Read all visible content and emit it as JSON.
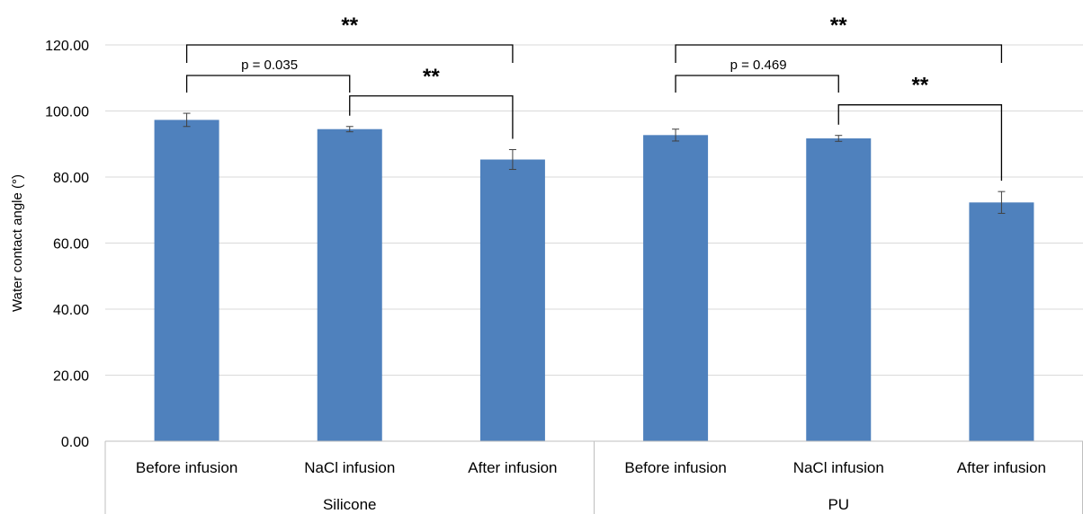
{
  "chart_data": {
    "type": "bar",
    "ylabel": "Water contact angle (°)",
    "ylim": [
      0,
      120
    ],
    "yticks": [
      "0.00",
      "20.00",
      "40.00",
      "60.00",
      "80.00",
      "100.00",
      "120.00"
    ],
    "grid": true,
    "bar_color": "#4f81bd",
    "groups": [
      {
        "name": "Silicone",
        "categories": [
          "Before infusion",
          "NaCl infusion",
          "After infusion"
        ],
        "values": [
          97.3,
          94.5,
          85.3
        ],
        "errors": [
          2.0,
          0.8,
          3.0
        ]
      },
      {
        "name": "PU",
        "categories": [
          "Before infusion",
          "NaCl infusion",
          "After infusion"
        ],
        "values": [
          92.7,
          91.7,
          72.3
        ],
        "errors": [
          1.8,
          0.9,
          3.3
        ]
      }
    ],
    "annotations": [
      {
        "group": 0,
        "from": 0,
        "to": 1,
        "label": "p = 0.035"
      },
      {
        "group": 0,
        "from": 0,
        "to": 2,
        "label": "**"
      },
      {
        "group": 0,
        "from": 1,
        "to": 2,
        "label": "**"
      },
      {
        "group": 1,
        "from": 0,
        "to": 1,
        "label": "p = 0.469"
      },
      {
        "group": 1,
        "from": 0,
        "to": 2,
        "label": "**"
      },
      {
        "group": 1,
        "from": 1,
        "to": 2,
        "label": "**"
      }
    ]
  }
}
